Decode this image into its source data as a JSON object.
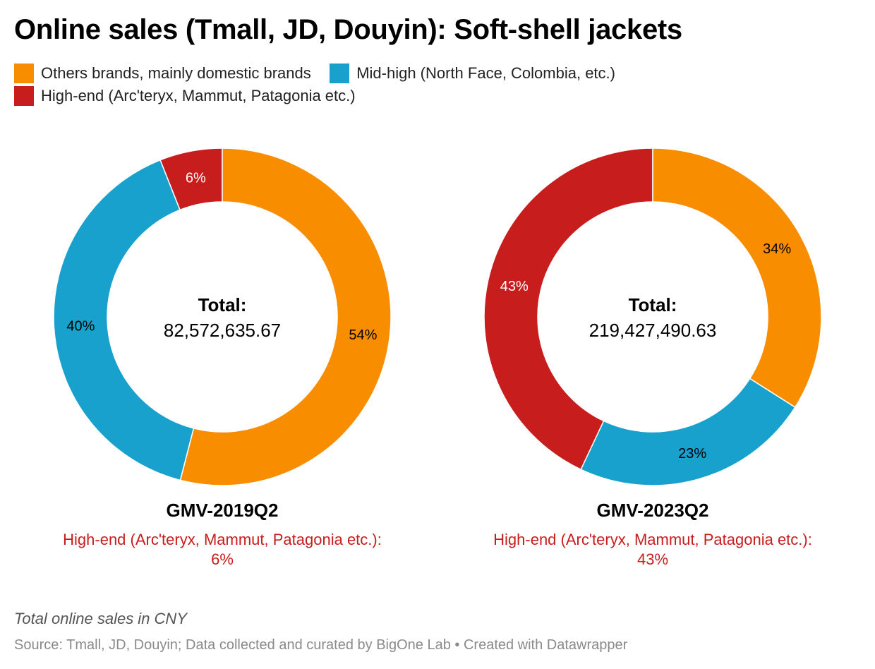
{
  "title": "Online sales (Tmall, JD, Douyin): Soft-shell jackets",
  "legend": [
    {
      "label": "Others brands, mainly domestic brands",
      "color": "#f98d00"
    },
    {
      "label": "Mid-high (North Face, Colombia, etc.)",
      "color": "#18a1cd"
    },
    {
      "label": "High-end (Arc'teryx, Mammut, Patagonia etc.)",
      "color": "#c71e1d"
    }
  ],
  "chart_data": [
    {
      "type": "pie",
      "title": "GMV-2019Q2",
      "center_label": "Total:",
      "center_value": "82,572,635.67",
      "highlight_text": "High-end (Arc'teryx, Mammut, Patagonia etc.): 6%",
      "highlight_line1": "High-end (Arc'teryx, Mammut, Patagonia etc.):",
      "highlight_line2": "6%",
      "categories": [
        "Others brands, mainly domestic brands",
        "Mid-high (North Face, Colombia, etc.)",
        "High-end (Arc'teryx, Mammut, Patagonia etc.)"
      ],
      "values": [
        54,
        40,
        6
      ],
      "labels": [
        "54%",
        "40%",
        "6%"
      ]
    },
    {
      "type": "pie",
      "title": "GMV-2023Q2",
      "center_label": "Total:",
      "center_value": "219,427,490.63",
      "highlight_text": "High-end (Arc'teryx, Mammut, Patagonia etc.): 43%",
      "highlight_line1": "High-end (Arc'teryx, Mammut, Patagonia etc.):",
      "highlight_line2": "43%",
      "categories": [
        "Others brands, mainly domestic brands",
        "Mid-high (North Face, Colombia, etc.)",
        "High-end (Arc'teryx, Mammut, Patagonia etc.)"
      ],
      "values": [
        34,
        23,
        43
      ],
      "labels": [
        "34%",
        "23%",
        "43%"
      ]
    }
  ],
  "note": "Total online sales in CNY",
  "source": "Source: Tmall, JD, Douyin; Data collected and curated by BigOne Lab • Created with Datawrapper"
}
